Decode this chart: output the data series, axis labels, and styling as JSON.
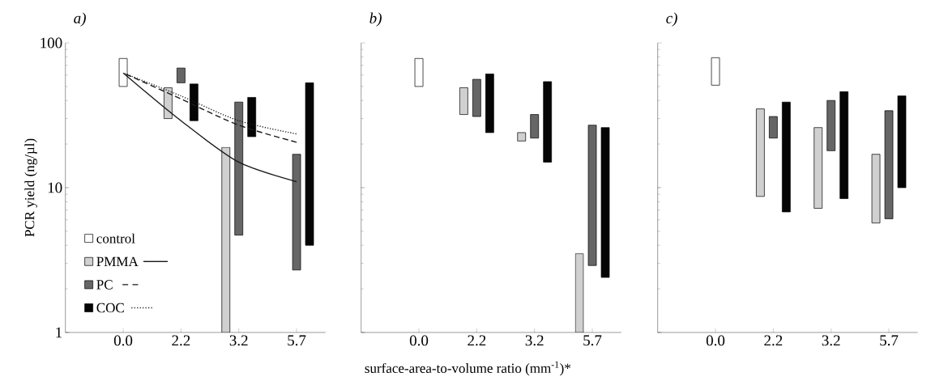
{
  "chart_data": [
    {
      "type": "bar",
      "title": "a)",
      "ylabel": "PCR yield (ng/µl)",
      "categories": [
        "0.0",
        "2.2",
        "3.2",
        "5.7"
      ],
      "log": true,
      "ylim": [
        1,
        100
      ],
      "yticks": [
        1,
        10,
        100
      ],
      "legend": "bottom left",
      "series": [
        {
          "name": "control",
          "color": "#ffffff",
          "base": [
            50,
            null,
            null,
            null
          ],
          "values": [
            28,
            null,
            null,
            null
          ]
        },
        {
          "name": "PMMA",
          "color": "#d0d0d0",
          "base": [
            null,
            30,
            1,
            null
          ],
          "values": [
            null,
            19,
            18,
            null
          ]
        },
        {
          "name": "PC",
          "color": "#666666",
          "base": [
            null,
            53,
            4.7,
            2.7
          ],
          "values": [
            null,
            14,
            34.3,
            14.3
          ]
        },
        {
          "name": "COC",
          "color": "#050505",
          "base": [
            null,
            29,
            22.5,
            4
          ],
          "values": [
            null,
            23,
            19.5,
            49
          ]
        },
        {
          "type": "line",
          "color": "#1a1a1a",
          "line_style": "solid",
          "values": [
            62,
            29,
            15,
            11
          ]
        },
        {
          "type": "line",
          "color": "#1a1a1a",
          "line_style": "dashed",
          "values": [
            62,
            41,
            27,
            20.6
          ]
        },
        {
          "type": "line",
          "color": "#1a1a1a",
          "line_style": "dotted",
          "values": [
            62,
            43,
            29,
            23.5
          ]
        }
      ]
    },
    {
      "type": "bar",
      "title": "b)",
      "xlabel": "surface-area-to-volume ratio (mm$^{-1}$)*",
      "categories": [
        "0.0",
        "2.2",
        "3.2",
        "5.7"
      ],
      "log": true,
      "ylim": [
        1,
        100
      ],
      "yticks": [
        1,
        10,
        100
      ],
      "tick_labels": "x",
      "series": [
        {
          "color": "#ffffff",
          "base": [
            50,
            null,
            null,
            null
          ],
          "values": [
            28,
            null,
            null,
            null
          ]
        },
        {
          "color": "#d0d0d0",
          "base": [
            null,
            32,
            21,
            1
          ],
          "values": [
            null,
            17,
            3,
            2.5
          ]
        },
        {
          "color": "#666666",
          "base": [
            null,
            31,
            22,
            2.9
          ],
          "values": [
            null,
            25,
            10,
            24.1
          ]
        },
        {
          "color": "#050505",
          "base": [
            null,
            24,
            15,
            2.4
          ],
          "values": [
            null,
            37,
            39,
            23.6
          ]
        }
      ]
    },
    {
      "type": "bar",
      "title": "c)",
      "categories": [
        "0.0",
        "2.2",
        "3.2",
        "5.7"
      ],
      "log": true,
      "ylim": [
        1,
        100
      ],
      "yticks": [
        1,
        10,
        100
      ],
      "tick_labels": "x",
      "series": [
        {
          "color": "#ffffff",
          "base": [
            51,
            null,
            null,
            null
          ],
          "values": [
            28,
            null,
            null,
            null
          ]
        },
        {
          "color": "#d0d0d0",
          "base": [
            null,
            8.7,
            7.2,
            5.7
          ],
          "values": [
            null,
            26.3,
            18.8,
            11.3
          ]
        },
        {
          "color": "#666666",
          "base": [
            null,
            22,
            18,
            6.1
          ],
          "values": [
            null,
            9,
            22,
            27.9
          ]
        },
        {
          "color": "#050505",
          "base": [
            null,
            6.8,
            8.4,
            10
          ],
          "values": [
            null,
            32.2,
            37.6,
            33
          ]
        }
      ]
    }
  ]
}
